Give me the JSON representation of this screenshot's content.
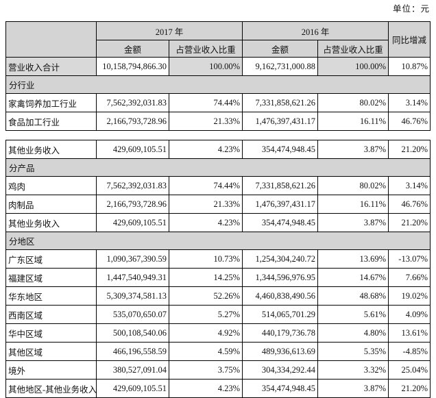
{
  "unit_label": "单位：元",
  "colors": {
    "header_gray": "#d4d4d4",
    "total_row_shade": "#d9d9d9",
    "border": "#000000",
    "background": "#ffffff"
  },
  "table": {
    "header": {
      "col_2017": "2017 年",
      "col_2016": "2016 年",
      "yoy": "同比增减",
      "amount": "金额",
      "share": "占营业收入比重"
    },
    "block1_rows": [
      {
        "total": true,
        "label": "营业收入合计",
        "a2017": "10,158,794,866.30",
        "p2017": "100.00%",
        "a2016": "9,162,731,000.88",
        "p2016": "100.00%",
        "yoy": "10.87%"
      },
      {
        "section": true,
        "label": "分行业"
      },
      {
        "label": "家禽饲养加工行业",
        "a2017": "7,562,392,031.83",
        "p2017": "74.44%",
        "a2016": "7,331,858,621.26",
        "p2016": "80.02%",
        "yoy": "3.14%"
      },
      {
        "label": "食品加工行业",
        "a2017": "2,166,793,728.96",
        "p2017": "21.33%",
        "a2016": "1,476,397,431.17",
        "p2016": "16.11%",
        "yoy": "46.76%"
      }
    ],
    "block2_rows": [
      {
        "label": "其他业务收入",
        "a2017": "429,609,105.51",
        "p2017": "4.23%",
        "a2016": "354,474,948.45",
        "p2016": "3.87%",
        "yoy": "21.20%"
      },
      {
        "section": true,
        "label": "分产品"
      },
      {
        "label": "鸡肉",
        "a2017": "7,562,392,031.83",
        "p2017": "74.44%",
        "a2016": "7,331,858,621.26",
        "p2016": "80.02%",
        "yoy": "3.14%"
      },
      {
        "label": "肉制品",
        "a2017": "2,166,793,728.96",
        "p2017": "21.33%",
        "a2016": "1,476,397,431.17",
        "p2016": "16.11%",
        "yoy": "46.76%"
      },
      {
        "label": "其他业务收入",
        "a2017": "429,609,105.51",
        "p2017": "4.23%",
        "a2016": "354,474,948.45",
        "p2016": "3.87%",
        "yoy": "21.20%"
      },
      {
        "section": true,
        "label": "分地区"
      },
      {
        "label": "广东区域",
        "a2017": "1,090,367,390.59",
        "p2017": "10.73%",
        "a2016": "1,254,304,240.72",
        "p2016": "13.69%",
        "yoy": "-13.07%"
      },
      {
        "label": "福建区域",
        "a2017": "1,447,540,949.31",
        "p2017": "14.25%",
        "a2016": "1,344,596,976.95",
        "p2016": "14.67%",
        "yoy": "7.66%"
      },
      {
        "label": "华东地区",
        "a2017": "5,309,374,581.13",
        "p2017": "52.26%",
        "a2016": "4,460,838,490.56",
        "p2016": "48.68%",
        "yoy": "19.02%"
      },
      {
        "label": "西南区域",
        "a2017": "535,070,650.07",
        "p2017": "5.27%",
        "a2016": "514,065,701.29",
        "p2016": "5.61%",
        "yoy": "4.09%"
      },
      {
        "label": "华中区域",
        "a2017": "500,108,540.06",
        "p2017": "4.92%",
        "a2016": "440,179,736.78",
        "p2016": "4.80%",
        "yoy": "13.61%"
      },
      {
        "label": "其他区域",
        "a2017": "466,196,558.59",
        "p2017": "4.59%",
        "a2016": "489,936,613.69",
        "p2016": "5.35%",
        "yoy": "-4.85%"
      },
      {
        "label": "境外",
        "a2017": "380,527,091.04",
        "p2017": "3.75%",
        "a2016": "304,334,292.44",
        "p2016": "3.32%",
        "yoy": "25.04%"
      },
      {
        "label": "其他地区-其他业务收入",
        "a2017": "429,609,105.51",
        "p2017": "4.23%",
        "a2016": "354,474,948.45",
        "p2016": "3.87%",
        "yoy": "21.20%"
      }
    ]
  }
}
